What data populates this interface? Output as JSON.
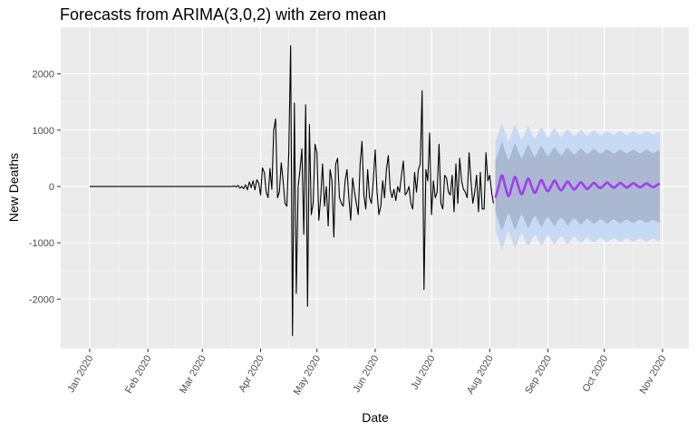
{
  "chart_data": {
    "type": "forecast",
    "title": "Forecasts from ARIMA(3,0,2) with zero mean",
    "x_label": "Date",
    "y_label": "New Deaths",
    "xlim": [
      -15.4,
      319
    ],
    "ylim": [
      -2880,
      2830
    ],
    "xticks": [
      {
        "value": 0,
        "label": "Jan 2020"
      },
      {
        "value": 31,
        "label": "Feb 2020"
      },
      {
        "value": 60,
        "label": "Mar 2020"
      },
      {
        "value": 91,
        "label": "Apr 2020"
      },
      {
        "value": 121,
        "label": "May 2020"
      },
      {
        "value": 152,
        "label": "Jun 2020"
      },
      {
        "value": 182,
        "label": "Jul 2020"
      },
      {
        "value": 213,
        "label": "Aug 2020"
      },
      {
        "value": 244,
        "label": "Sep 2020"
      },
      {
        "value": 274,
        "label": "Oct 2020"
      },
      {
        "value": 305,
        "label": "Nov 2020"
      }
    ],
    "yticks": [
      -2000,
      -1000,
      0,
      1000,
      2000
    ],
    "grid": true,
    "series": [
      {
        "color": "#000000",
        "x": [
          0,
          75,
          76,
          77,
          78,
          79,
          80,
          81,
          82,
          83,
          84,
          85,
          86,
          87,
          88,
          89,
          90,
          91,
          92,
          93,
          94,
          95,
          96,
          97,
          98,
          99,
          100,
          101,
          102,
          103,
          104,
          105,
          106,
          107,
          108,
          109,
          110,
          111,
          112,
          113,
          114,
          115,
          116,
          117,
          118,
          119,
          120,
          121,
          122,
          123,
          124,
          125,
          126,
          127,
          128,
          129,
          130,
          131,
          132,
          133,
          134,
          135,
          136,
          137,
          138,
          139,
          140,
          141,
          142,
          143,
          144,
          145,
          146,
          147,
          148,
          149,
          150,
          151,
          152,
          153,
          154,
          155,
          156,
          157,
          158,
          159,
          160,
          161,
          162,
          163,
          164,
          165,
          166,
          167,
          168,
          169,
          170,
          171,
          172,
          173,
          174,
          175,
          176,
          177,
          178,
          179,
          180,
          181,
          182,
          183,
          184,
          185,
          186,
          187,
          188,
          189,
          190,
          191,
          192,
          193,
          194,
          195,
          196,
          197,
          198,
          199,
          200,
          201,
          202,
          203,
          204,
          205,
          206,
          207,
          208,
          209,
          210,
          211,
          212,
          213,
          214,
          215
        ],
        "values": [
          0,
          0,
          0,
          10,
          -10,
          20,
          -30,
          0,
          -40,
          30,
          -60,
          80,
          -20,
          100,
          -60,
          120,
          60,
          -150,
          330,
          250,
          -100,
          -200,
          320,
          -50,
          1000,
          1200,
          -200,
          -100,
          420,
          100,
          -300,
          -350,
          600,
          2500,
          -2650,
          1480,
          -1900,
          0,
          300,
          670,
          -850,
          1450,
          -2130,
          1100,
          -500,
          -300,
          750,
          600,
          -600,
          -200,
          400,
          -350,
          0,
          -700,
          300,
          100,
          -900,
          400,
          500,
          -200,
          -300,
          -350,
          100,
          300,
          -200,
          -600,
          150,
          -100,
          -300,
          -500,
          400,
          800,
          -150,
          -400,
          300,
          -200,
          -300,
          100,
          650,
          -100,
          -500,
          -350,
          100,
          -200,
          300,
          550,
          -50,
          -200,
          -50,
          -250,
          0,
          -100,
          200,
          450,
          -150,
          -100,
          0,
          -300,
          -400,
          250,
          -100,
          300,
          400,
          1700,
          -1830,
          300,
          100,
          950,
          -500,
          100,
          -200,
          -100,
          750,
          -300,
          -400,
          200,
          150,
          -100,
          -150,
          200,
          -450,
          400,
          -300,
          500,
          100,
          -50,
          -100,
          -200,
          600,
          100,
          -300,
          -100,
          200,
          -450,
          250,
          -400,
          -400,
          600,
          100,
          200,
          -100,
          -300
        ]
      },
      {
        "color": "#a23cf0",
        "band80_color": "#aab8d2",
        "band95_color": "#c7daf4",
        "x": [
          216,
          217.75,
          219.5,
          221.25,
          223,
          224.75,
          226.5,
          228.25,
          230,
          231.75,
          233.5,
          235.25,
          237,
          238.75,
          240.5,
          242.25,
          244,
          245.75,
          247.5,
          249.25,
          251,
          252.75,
          254.5,
          256.25,
          258,
          259.75,
          261.5,
          263.25,
          265,
          266.75,
          268.5,
          270.25,
          272,
          273.75,
          275.5,
          277.25,
          279,
          280.75,
          282.5,
          284.25,
          286,
          287.75,
          289.5,
          291.25,
          293,
          294.75,
          296.5,
          298.25,
          300,
          301.75,
          303.5
        ],
        "values": [
          -200,
          0,
          200,
          0,
          -170,
          0,
          170,
          0,
          -140,
          0,
          140,
          0,
          -115,
          0,
          115,
          0,
          -85,
          10,
          105,
          10,
          -70,
          10,
          90,
          10,
          -55,
          10,
          75,
          10,
          -45,
          10,
          65,
          10,
          -28,
          20,
          68,
          20,
          -22,
          20,
          62,
          20,
          -18,
          20,
          58,
          20,
          -15,
          20,
          55,
          20,
          -13,
          20,
          53
        ],
        "upper95": [
          790,
          950,
          1110,
          950,
          814,
          950,
          1086,
          950,
          838,
          950,
          1062,
          950,
          858,
          950,
          1042,
          950,
          874,
          950,
          1026,
          950,
          886,
          950,
          1014,
          950,
          898,
          950,
          1002,
          950,
          906,
          950,
          994,
          950,
          912,
          950,
          988,
          950,
          916,
          950,
          984,
          950,
          920,
          950,
          980,
          950,
          922,
          950,
          978,
          950,
          924,
          950,
          976
        ],
        "lower95": [
          -790,
          -950,
          -1110,
          -950,
          -814,
          -950,
          -1086,
          -950,
          -838,
          -950,
          -1062,
          -950,
          -858,
          -950,
          -1042,
          -950,
          -874,
          -950,
          -1026,
          -950,
          -886,
          -950,
          -1014,
          -950,
          -898,
          -950,
          -1002,
          -950,
          -906,
          -950,
          -994,
          -950,
          -912,
          -950,
          -988,
          -950,
          -916,
          -950,
          -984,
          -950,
          -920,
          -950,
          -980,
          -950,
          -922,
          -950,
          -978,
          -950,
          -924,
          -950,
          -976
        ],
        "upper80": [
          460,
          620,
          780,
          620,
          484,
          620,
          756,
          620,
          508,
          620,
          732,
          620,
          528,
          620,
          712,
          620,
          544,
          620,
          696,
          620,
          556,
          620,
          684,
          620,
          568,
          620,
          672,
          620,
          576,
          620,
          664,
          620,
          582,
          620,
          658,
          620,
          586,
          620,
          654,
          620,
          590,
          620,
          650,
          620,
          592,
          620,
          648,
          620,
          594,
          620,
          646
        ],
        "lower80": [
          -460,
          -620,
          -780,
          -620,
          -484,
          -620,
          -756,
          -620,
          -508,
          -620,
          -732,
          -620,
          -528,
          -620,
          -712,
          -620,
          -544,
          -620,
          -696,
          -620,
          -556,
          -620,
          -684,
          -620,
          -568,
          -620,
          -672,
          -620,
          -576,
          -620,
          -664,
          -620,
          -582,
          -620,
          -658,
          -620,
          -586,
          -620,
          -654,
          -620,
          -590,
          -620,
          -650,
          -620,
          -592,
          -620,
          -648,
          -620,
          -594,
          -620,
          -646
        ]
      }
    ]
  }
}
